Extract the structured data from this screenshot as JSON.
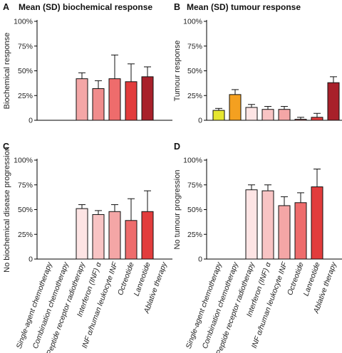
{
  "chart_data": [
    {
      "panel": "A",
      "type": "bar",
      "title": "Mean (SD) biochemical response",
      "ylabel": "Biochemical response",
      "ylim": [
        0,
        100
      ],
      "yticks": [
        "0",
        "25%",
        "50%",
        "75%",
        "100%"
      ],
      "categories": [
        "Single-agent chemotherapy",
        "Combination chemotherapy",
        "Peptide receptor radiotherapy",
        "Interferon (INF) α",
        "INF α/human leukocyte INF",
        "Octreotide",
        "Lanreotide",
        "Ablative therapy"
      ],
      "values": [
        null,
        null,
        42,
        32,
        42,
        39,
        44,
        null
      ],
      "sd": [
        null,
        null,
        6,
        8,
        24,
        18,
        10,
        null
      ],
      "colors": [
        null,
        null,
        "#f4a6a6",
        "#f08c8c",
        "#ee6c6c",
        "#e23c3c",
        "#a8202a",
        null
      ]
    },
    {
      "panel": "B",
      "type": "bar",
      "title": "Mean (SD) tumour response",
      "ylabel": "Tumour response",
      "ylim": [
        0,
        100
      ],
      "yticks": [
        "0",
        "25%",
        "50%",
        "75%",
        "100%"
      ],
      "categories": [
        "Single-agent chemotherapy",
        "Combination chemotherapy",
        "Peptide receptor radiotherapy",
        "Interferon (INF) α",
        "INF α/human leukocyte INF",
        "Octreotide",
        "Lanreotide",
        "Ablative therapy"
      ],
      "values": [
        10,
        26,
        13,
        11,
        11,
        1,
        3,
        38
      ],
      "sd": [
        2,
        5,
        3,
        3,
        3,
        2,
        4,
        6
      ],
      "colors": [
        "#e6e630",
        "#f4a020",
        "#fde4e4",
        "#f8c4c4",
        "#f4a6a6",
        "#ee6c6c",
        "#e23c3c",
        "#a8202a"
      ]
    },
    {
      "panel": "C",
      "type": "bar",
      "title": "",
      "ylabel": "No biochemical disease progression",
      "ylim": [
        0,
        100
      ],
      "yticks": [
        "0",
        "25%",
        "50%",
        "75%",
        "100%"
      ],
      "categories": [
        "Single-agent chemotherapy",
        "Combination chemotherapy",
        "Peptide receptor radiotherapy",
        "Interferon (INF) α",
        "INF α/human leukocyte INF",
        "Octreotide",
        "Lanreotide",
        "Ablative therapy"
      ],
      "values": [
        null,
        null,
        51,
        45,
        48,
        39,
        48,
        null
      ],
      "sd": [
        null,
        null,
        4,
        4,
        7,
        22,
        21,
        null
      ],
      "colors": [
        null,
        null,
        "#fde4e4",
        "#f8c4c4",
        "#f4a6a6",
        "#ee6c6c",
        "#e23c3c",
        null
      ]
    },
    {
      "panel": "D",
      "type": "bar",
      "title": "",
      "ylabel": "No tumour progression",
      "ylim": [
        0,
        100
      ],
      "yticks": [
        "0",
        "25%",
        "50%",
        "75%",
        "100%"
      ],
      "categories": [
        "Single-agent chemotherapy",
        "Combination chemotherapy",
        "Peptide receptor radiotherapy",
        "Interferon (INF) α",
        "INF α/human leukocyte INF",
        "Octreotide",
        "Lanreotide",
        "Ablative therapy"
      ],
      "values": [
        null,
        null,
        70,
        69,
        54,
        57,
        73,
        null
      ],
      "sd": [
        null,
        null,
        5,
        6,
        9,
        10,
        18,
        null
      ],
      "colors": [
        null,
        null,
        "#fde4e4",
        "#f8c4c4",
        "#f4a6a6",
        "#ee6c6c",
        "#e23c3c",
        null
      ]
    }
  ],
  "category_labels": [
    "Single-agent chemotherapy",
    "Combination chemotherapy",
    "Peptide receptor radiotherapy",
    "Interferon (INF) α",
    "INF α/human leukocyte INF",
    "Octreotide",
    "Lanreotide",
    "Ablative therapy"
  ]
}
